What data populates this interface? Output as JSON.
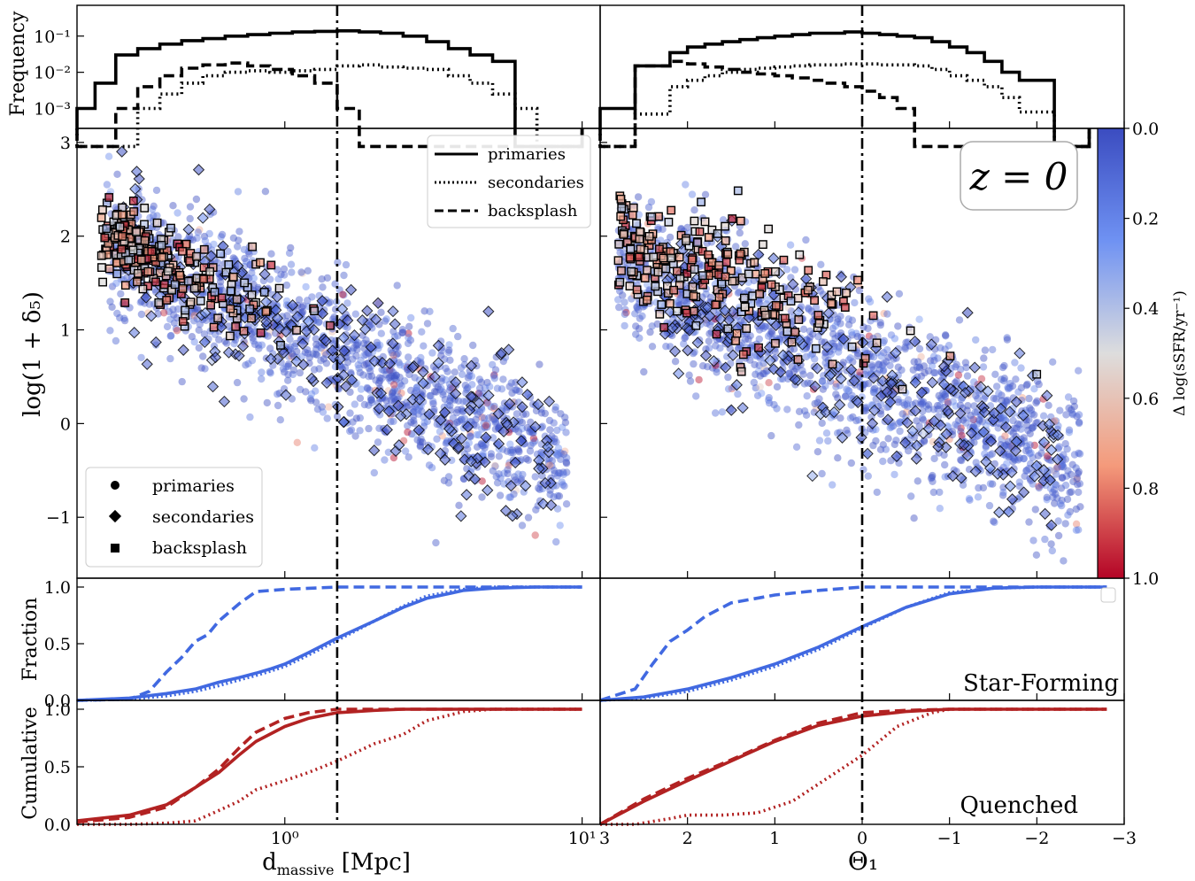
{
  "chart_data": {
    "type": "scatter",
    "redshift_label": "z = 0",
    "shared_ylabel_fraction": "Fraction",
    "shared_ylabel_cumulative": "Cumulative",
    "legend_lines": [
      "primaries",
      "secondaries",
      "backsplash"
    ],
    "legend_markers": [
      "primaries",
      "secondaries",
      "backsplash"
    ],
    "top_ylabel": "Frequency",
    "top_yticks": [
      "10⁻¹",
      "10⁻²",
      "10⁻³"
    ],
    "main_ylabel": "log(1 + δ₅)",
    "main_ylim": [
      -1.65,
      3.15
    ],
    "main_yticks": [
      "3",
      "2",
      "1",
      "0",
      "−1"
    ],
    "frac_yticks": [
      "1.0",
      "0.5",
      "0.0"
    ],
    "panel_label_sf": "Star-Forming",
    "panel_label_q": "Quenched",
    "colorbar": {
      "label": "Δ log(sSFR/yr⁻¹)",
      "range": [
        0.0,
        1.0
      ],
      "ticks": [
        "0.0",
        "0.2",
        "0.4",
        "0.6",
        "0.8",
        "1.0"
      ]
    },
    "colors": {
      "star_forming": "#4169e1",
      "quenched": "#b22222",
      "cmap_low": "#3b4cc0",
      "cmap_mid": "#dddddd",
      "cmap_high": "#b40426"
    },
    "left": {
      "xlabel": "d_massive [Mpc]",
      "xlabel_main": "d",
      "xlabel_sub": "massive",
      "xlabel_unit": " [Mpc]",
      "xscale": "log",
      "xlim": [
        0.2,
        11.5
      ],
      "vline": 1.5,
      "xticks": [
        {
          "value": 1,
          "label": "10⁰"
        },
        {
          "value": 10,
          "label": "10¹"
        }
      ],
      "hist_edges": [
        0.2,
        0.23,
        0.27,
        0.32,
        0.38,
        0.45,
        0.53,
        0.63,
        0.75,
        0.89,
        1.06,
        1.26,
        1.5,
        1.78,
        2.1,
        2.5,
        3.0,
        3.55,
        4.2,
        5.0,
        5.95,
        7.05,
        8.4,
        10.0
      ],
      "hist_primaries": [
        0.001,
        0.005,
        0.03,
        0.045,
        0.06,
        0.075,
        0.085,
        0.1,
        0.11,
        0.12,
        0.13,
        0.135,
        0.14,
        0.13,
        0.12,
        0.1,
        0.07,
        0.045,
        0.03,
        0.02,
        0.0,
        0.0,
        0.0
      ],
      "hist_secondaries": [
        0.0,
        0.0,
        0.0,
        0.001,
        0.0025,
        0.005,
        0.008,
        0.01,
        0.011,
        0.01,
        0.011,
        0.012,
        0.015,
        0.016,
        0.014,
        0.013,
        0.012,
        0.008,
        0.005,
        0.0025,
        0.001,
        0.0,
        0.0
      ],
      "hist_backsplash": [
        0.0,
        0.0,
        0.001,
        0.004,
        0.008,
        0.013,
        0.016,
        0.018,
        0.015,
        0.012,
        0.008,
        0.005,
        0.001,
        0.0,
        0.0,
        0.0,
        0.0,
        0.0,
        0.0,
        0.0,
        0.0,
        0.0,
        0.0
      ],
      "sf_x": [
        0.2,
        0.3,
        0.4,
        0.5,
        0.6,
        0.7,
        0.8,
        0.9,
        1.0,
        1.2,
        1.5,
        2.0,
        2.5,
        3.0,
        4.0,
        5.0,
        7.0,
        10.0
      ],
      "sf_primaries": [
        0.0,
        0.02,
        0.06,
        0.1,
        0.16,
        0.2,
        0.24,
        0.28,
        0.32,
        0.42,
        0.55,
        0.7,
        0.82,
        0.9,
        0.97,
        0.99,
        1.0,
        1.0
      ],
      "sf_secondaries": [
        0.0,
        0.01,
        0.04,
        0.08,
        0.13,
        0.18,
        0.22,
        0.26,
        0.3,
        0.4,
        0.53,
        0.7,
        0.83,
        0.92,
        0.98,
        1.0,
        1.0,
        1.0
      ],
      "sf_backsplash_x": [
        0.2,
        0.3,
        0.35,
        0.4,
        0.45,
        0.5,
        0.55,
        0.6,
        0.7,
        0.8,
        0.9,
        1.0,
        1.5,
        2.0,
        10.0
      ],
      "sf_backsplash": [
        0.0,
        0.01,
        0.08,
        0.25,
        0.38,
        0.52,
        0.58,
        0.7,
        0.85,
        0.96,
        0.97,
        0.98,
        1.0,
        1.0,
        1.0
      ],
      "q_x": [
        0.2,
        0.3,
        0.4,
        0.5,
        0.6,
        0.7,
        0.8,
        1.0,
        1.2,
        1.5,
        2.0,
        2.5,
        3.0,
        4.0,
        5.0,
        7.0,
        10.0
      ],
      "q_primaries": [
        0.03,
        0.08,
        0.17,
        0.32,
        0.45,
        0.6,
        0.72,
        0.85,
        0.92,
        0.97,
        0.99,
        1.0,
        1.0,
        1.0,
        1.0,
        1.0,
        1.0
      ],
      "q_backsplash": [
        0.02,
        0.06,
        0.15,
        0.32,
        0.48,
        0.66,
        0.8,
        0.92,
        0.97,
        1.0,
        1.0,
        1.0,
        1.0,
        1.0,
        1.0,
        1.0,
        1.0
      ],
      "q_secondaries": [
        0.0,
        0.0,
        0.01,
        0.03,
        0.12,
        0.2,
        0.3,
        0.38,
        0.45,
        0.55,
        0.7,
        0.78,
        0.9,
        0.98,
        1.0,
        1.0,
        1.0
      ]
    },
    "right": {
      "xlabel": "Θ₁",
      "xlim": [
        3.0,
        -3.0
      ],
      "vline": 0.0,
      "xticks": [
        {
          "value": 3,
          "label": "3"
        },
        {
          "value": 2,
          "label": "2"
        },
        {
          "value": 1,
          "label": "1"
        },
        {
          "value": 0,
          "label": "0"
        },
        {
          "value": -1,
          "label": "−1"
        },
        {
          "value": -2,
          "label": "−2"
        },
        {
          "value": -3,
          "label": "−3"
        }
      ],
      "hist_edges": [
        3.0,
        2.6,
        2.2,
        2.0,
        1.8,
        1.6,
        1.4,
        1.2,
        1.0,
        0.8,
        0.6,
        0.4,
        0.2,
        0.0,
        -0.2,
        -0.4,
        -0.6,
        -0.8,
        -1.0,
        -1.2,
        -1.4,
        -1.6,
        -1.8,
        -2.2,
        -2.6
      ],
      "hist_primaries": [
        0.001,
        0.015,
        0.035,
        0.05,
        0.06,
        0.07,
        0.08,
        0.09,
        0.1,
        0.11,
        0.12,
        0.12,
        0.13,
        0.12,
        0.11,
        0.1,
        0.09,
        0.07,
        0.05,
        0.035,
        0.02,
        0.01,
        0.006,
        0.0
      ],
      "hist_secondaries": [
        0.0,
        0.0007,
        0.004,
        0.006,
        0.008,
        0.01,
        0.012,
        0.013,
        0.014,
        0.015,
        0.016,
        0.016,
        0.017,
        0.017,
        0.016,
        0.016,
        0.015,
        0.012,
        0.008,
        0.006,
        0.004,
        0.002,
        0.0008,
        0.0
      ],
      "hist_backsplash": [
        0.0,
        0.015,
        0.02,
        0.017,
        0.014,
        0.012,
        0.01,
        0.009,
        0.008,
        0.007,
        0.006,
        0.005,
        0.004,
        0.003,
        0.002,
        0.001,
        0.0,
        0.0,
        0.0,
        0.0,
        0.0,
        0.0,
        0.0,
        0.0
      ],
      "sf_x": [
        3.0,
        2.5,
        2.0,
        1.5,
        1.0,
        0.5,
        0.0,
        -0.5,
        -1.0,
        -1.5,
        -2.0,
        -2.8
      ],
      "sf_primaries": [
        0.0,
        0.03,
        0.1,
        0.2,
        0.32,
        0.47,
        0.65,
        0.82,
        0.94,
        0.99,
        1.0,
        1.0
      ],
      "sf_secondaries": [
        0.0,
        0.02,
        0.08,
        0.18,
        0.3,
        0.45,
        0.64,
        0.82,
        0.95,
        0.99,
        1.0,
        1.0
      ],
      "sf_backsplash_x": [
        3.0,
        2.8,
        2.6,
        2.4,
        2.2,
        2.0,
        1.8,
        1.5,
        1.0,
        0.5,
        0.0,
        -1.0,
        -2.8
      ],
      "sf_backsplash": [
        0.0,
        0.05,
        0.1,
        0.32,
        0.52,
        0.62,
        0.74,
        0.86,
        0.93,
        0.97,
        1.0,
        1.0,
        1.0
      ],
      "q_x": [
        3.0,
        2.5,
        2.0,
        1.5,
        1.0,
        0.5,
        0.0,
        -0.5,
        -1.0,
        -2.0,
        -2.8
      ],
      "q_primaries": [
        0.0,
        0.2,
        0.38,
        0.55,
        0.72,
        0.86,
        0.94,
        0.98,
        1.0,
        1.0,
        1.0
      ],
      "q_backsplash": [
        0.0,
        0.22,
        0.4,
        0.56,
        0.73,
        0.88,
        0.97,
        0.99,
        1.0,
        1.0,
        1.0
      ],
      "q_secondaries_x": [
        3.0,
        2.6,
        2.2,
        2.0,
        1.6,
        1.2,
        0.8,
        0.4,
        0.0,
        -0.4,
        -0.8,
        -1.0,
        -2.0,
        -2.8
      ],
      "q_secondaries": [
        0.0,
        0.0,
        0.05,
        0.08,
        0.08,
        0.1,
        0.2,
        0.4,
        0.6,
        0.85,
        0.97,
        1.0,
        1.0,
        1.0
      ]
    }
  }
}
